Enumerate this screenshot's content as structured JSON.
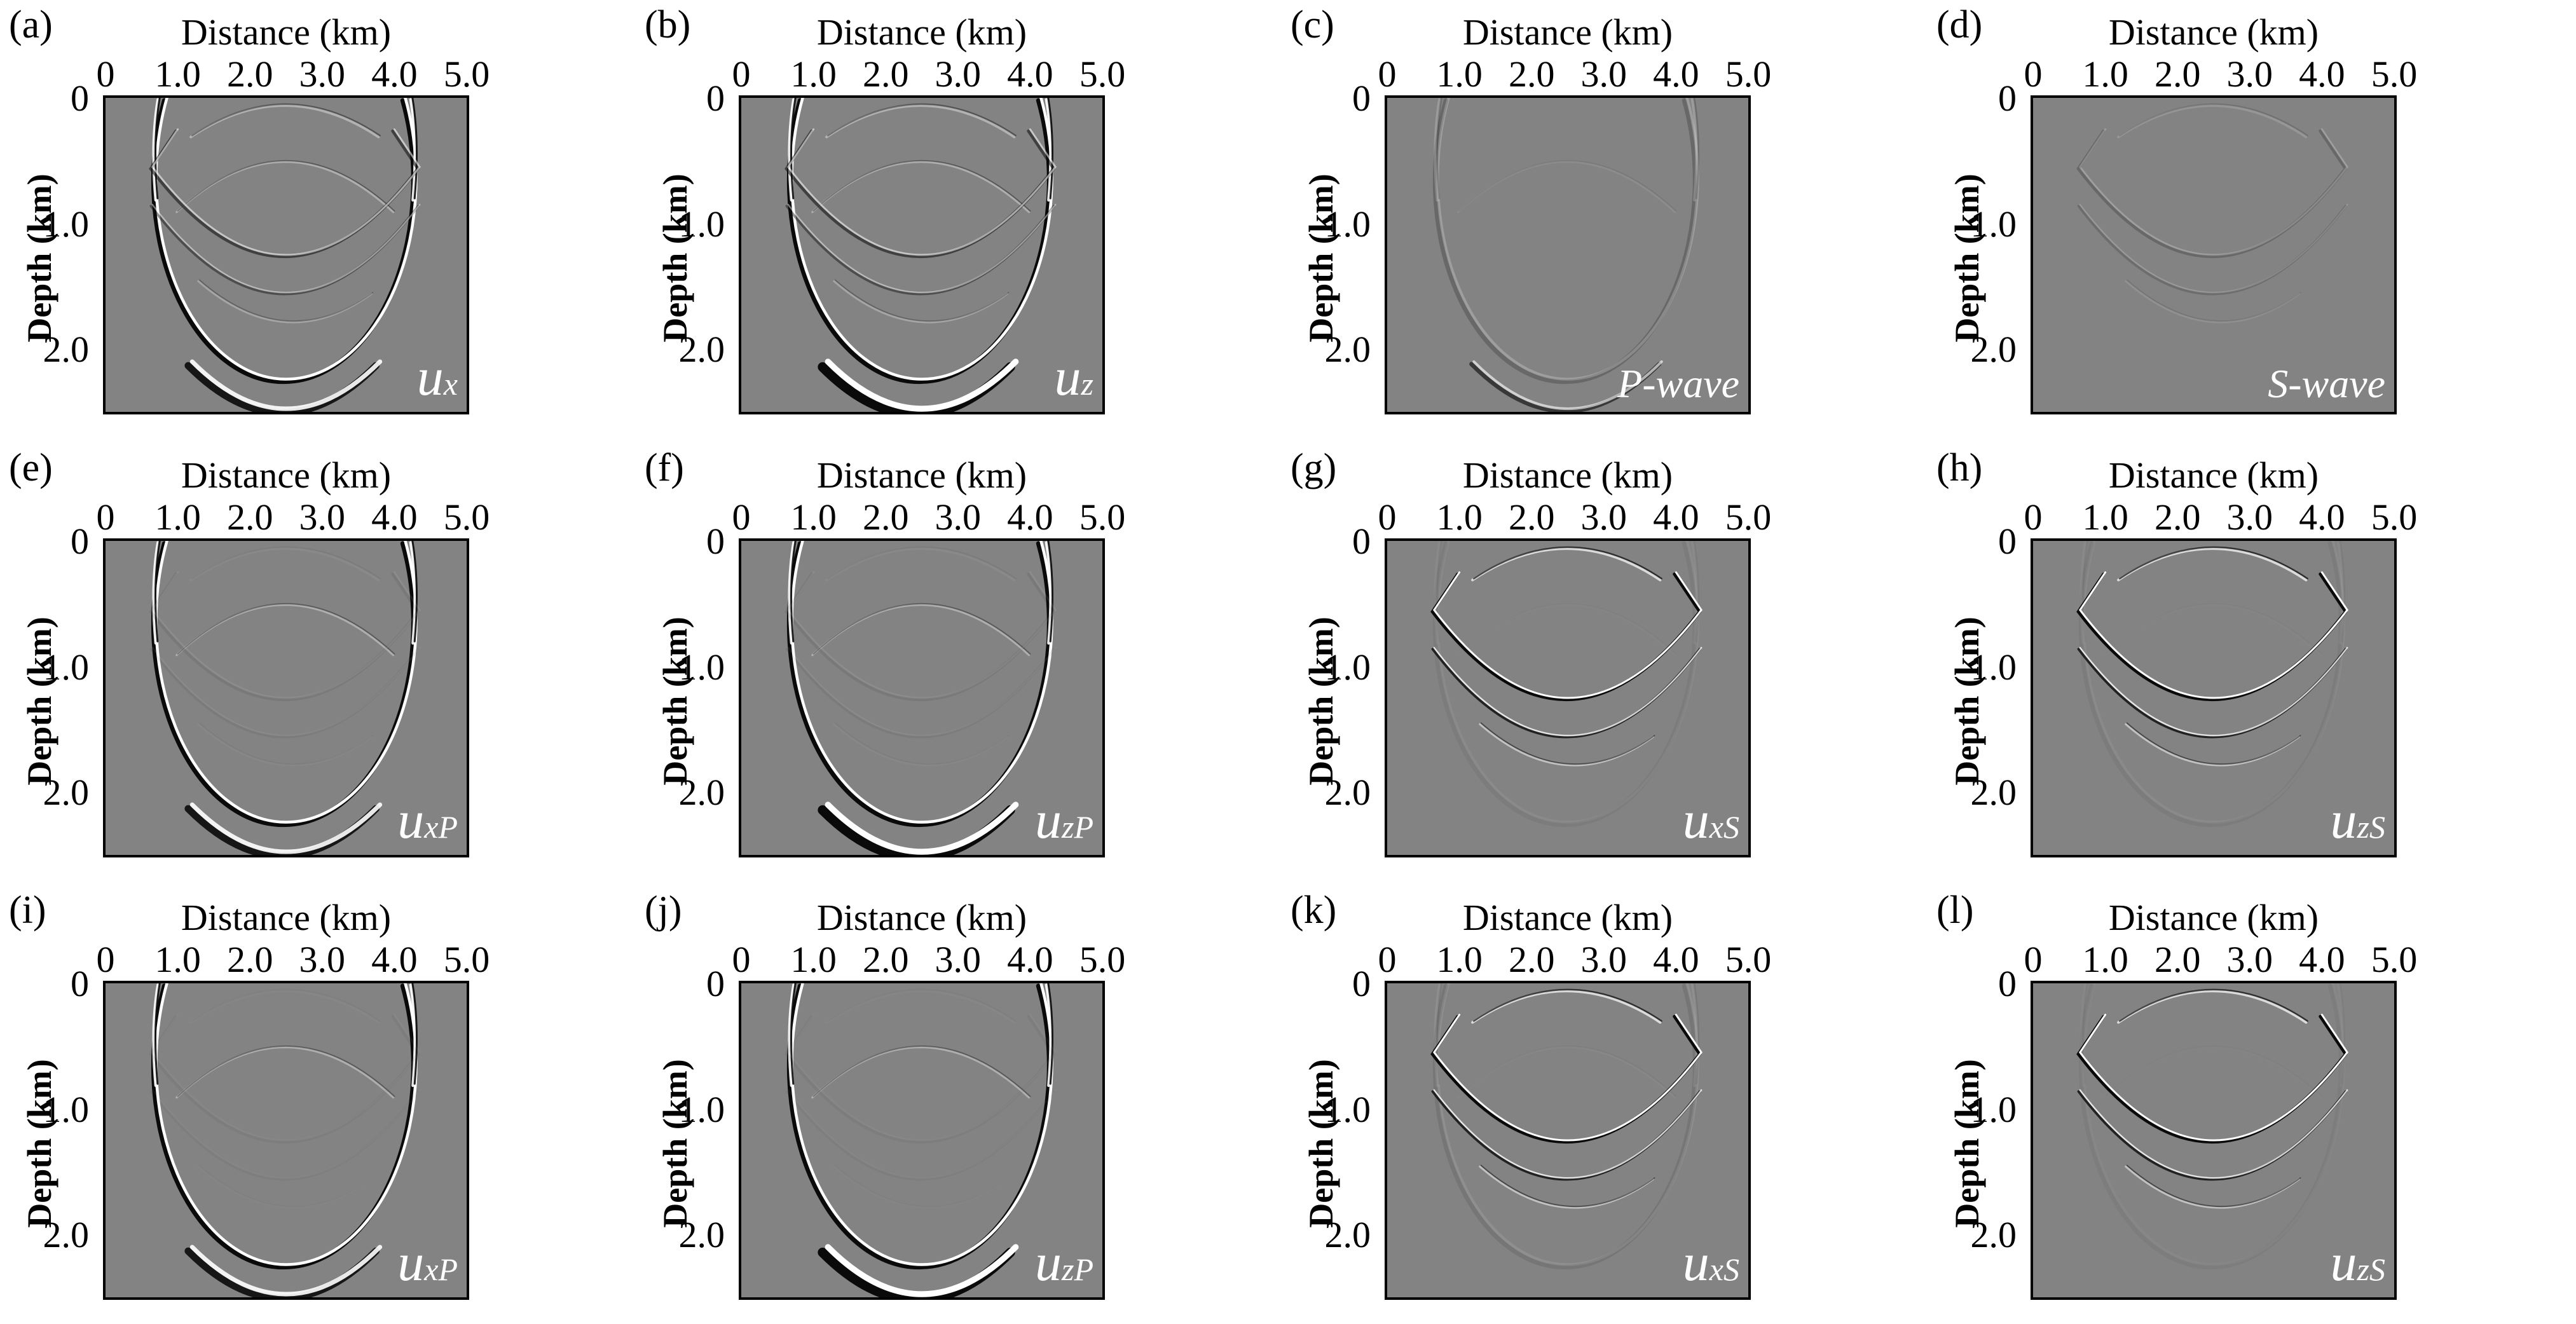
{
  "figure": {
    "background": "#ffffff",
    "image_gray": "#838383",
    "axis_color": "#000000",
    "tag_color": "#ffffff",
    "x_axis": {
      "title": "Distance (km)",
      "ticks": [
        "0",
        "1.0",
        "2.0",
        "3.0",
        "4.0",
        "5.0"
      ],
      "range": [
        0,
        5.0
      ]
    },
    "y_axis": {
      "title": "Depth (km)",
      "ticks": [
        "0",
        "1.0",
        "2.0"
      ],
      "range": [
        0,
        2.5
      ]
    },
    "panels": [
      {
        "label": "(a)",
        "tag": "u",
        "sub": "x",
        "kind": "p_s",
        "p": 1.0,
        "s": 0.55,
        "bottom": 1.0,
        "content": "full wavefield x-component"
      },
      {
        "label": "(b)",
        "tag": "u",
        "sub": "z",
        "kind": "p_s",
        "p": 1.0,
        "s": 0.55,
        "bottom": 1.6,
        "content": "full wavefield z-component"
      },
      {
        "label": "(c)",
        "tag": "P-wave",
        "sub": "",
        "kind": "p_weak",
        "p": 0.22,
        "s": 0.0,
        "bottom": 0.3,
        "content": "P-wave scalar"
      },
      {
        "label": "(d)",
        "tag": "S-wave",
        "sub": "",
        "kind": "s_weak",
        "p": 0.0,
        "s": 0.22,
        "bottom": 0.0,
        "content": "S-wave scalar"
      },
      {
        "label": "(e)",
        "tag": "u",
        "sub": "xP",
        "kind": "p_only",
        "p": 1.0,
        "s": 0.08,
        "bottom": 1.0,
        "content": "separated P x-component"
      },
      {
        "label": "(f)",
        "tag": "u",
        "sub": "zP",
        "kind": "p_only",
        "p": 1.0,
        "s": 0.08,
        "bottom": 1.6,
        "content": "separated P z-component"
      },
      {
        "label": "(g)",
        "tag": "u",
        "sub": "xS",
        "kind": "s_only",
        "p": 0.06,
        "s": 1.0,
        "bottom": 0.0,
        "content": "separated S x-component"
      },
      {
        "label": "(h)",
        "tag": "u",
        "sub": "zS",
        "kind": "s_only",
        "p": 0.06,
        "s": 1.0,
        "bottom": 0.0,
        "content": "separated S z-component"
      },
      {
        "label": "(i)",
        "tag": "u",
        "sub": "xP",
        "kind": "p_only",
        "p": 1.0,
        "s": 0.04,
        "bottom": 1.0,
        "content": "separated P x-component (method 2)"
      },
      {
        "label": "(j)",
        "tag": "u",
        "sub": "zP",
        "kind": "p_only",
        "p": 1.0,
        "s": 0.04,
        "bottom": 1.6,
        "content": "separated P z-component (method 2)"
      },
      {
        "label": "(k)",
        "tag": "u",
        "sub": "xS",
        "kind": "s_only",
        "p": 0.1,
        "s": 1.0,
        "bottom": 0.0,
        "content": "separated S x-component (method 2)"
      },
      {
        "label": "(l)",
        "tag": "u",
        "sub": "zS",
        "kind": "s_only",
        "p": 0.04,
        "s": 1.0,
        "bottom": 0.0,
        "content": "separated S z-component (method 2)"
      }
    ]
  }
}
